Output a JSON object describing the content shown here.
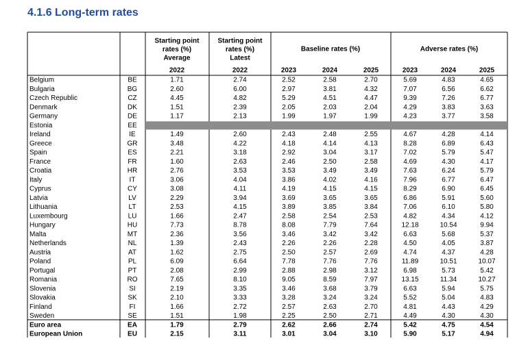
{
  "title": "4.1.6 Long-term rates",
  "table": {
    "headers": [
      [
        "Starting point",
        "rates (%)",
        "Average"
      ],
      [
        "Starting point",
        "rates (%)",
        "Latest"
      ],
      [
        "Baseline rates (%)"
      ],
      [
        "Adverse rates (%)"
      ]
    ],
    "years": [
      "2022",
      "2022",
      "2023",
      "2024",
      "2025",
      "2023",
      "2024",
      "2025"
    ],
    "rows": [
      {
        "name": "Belgium",
        "code": "BE",
        "values": [
          "1.71",
          "2.74",
          "2.52",
          "2.58",
          "2.70",
          "5.69",
          "4.83",
          "4.65"
        ]
      },
      {
        "name": "Bulgaria",
        "code": "BG",
        "values": [
          "2.60",
          "6.00",
          "2.97",
          "3.81",
          "4.32",
          "7.07",
          "6.56",
          "6.62"
        ]
      },
      {
        "name": "Czech Republic",
        "code": "CZ",
        "values": [
          "4.45",
          "4.82",
          "5.29",
          "4.51",
          "4.47",
          "9.39",
          "7.26",
          "6.77"
        ]
      },
      {
        "name": "Denmark",
        "code": "DK",
        "values": [
          "1.51",
          "2.39",
          "2.05",
          "2.03",
          "2.04",
          "4.29",
          "3.83",
          "3.63"
        ]
      },
      {
        "name": "Germany",
        "code": "DE",
        "values": [
          "1.17",
          "2.13",
          "1.99",
          "1.97",
          "1.99",
          "4.23",
          "3.77",
          "3.58"
        ]
      },
      {
        "name": "Estonia",
        "code": "EE",
        "values": []
      },
      {
        "name": "Ireland",
        "code": "IE",
        "values": [
          "1.49",
          "2.60",
          "2.43",
          "2.48",
          "2.55",
          "4.67",
          "4.28",
          "4.14"
        ]
      },
      {
        "name": "Greece",
        "code": "GR",
        "values": [
          "3.48",
          "4.22",
          "4.18",
          "4.14",
          "4.13",
          "8.28",
          "6.89",
          "6.43"
        ]
      },
      {
        "name": "Spain",
        "code": "ES",
        "values": [
          "2.21",
          "3.18",
          "2.92",
          "3.04",
          "3.17",
          "7.02",
          "5.79",
          "5.47"
        ]
      },
      {
        "name": "France",
        "code": "FR",
        "values": [
          "1.60",
          "2.63",
          "2.46",
          "2.50",
          "2.58",
          "4.69",
          "4.30",
          "4.17"
        ]
      },
      {
        "name": "Croatia",
        "code": "HR",
        "values": [
          "2.76",
          "3.53",
          "3.53",
          "3.49",
          "3.49",
          "7.63",
          "6.24",
          "5.79"
        ]
      },
      {
        "name": "Italy",
        "code": "IT",
        "values": [
          "3.06",
          "4.04",
          "3.86",
          "4.02",
          "4.16",
          "7.96",
          "6.77",
          "6.47"
        ]
      },
      {
        "name": "Cyprus",
        "code": "CY",
        "values": [
          "3.08",
          "4.11",
          "4.19",
          "4.15",
          "4.15",
          "8.29",
          "6.90",
          "6.45"
        ]
      },
      {
        "name": "Latvia",
        "code": "LV",
        "values": [
          "2.29",
          "3.94",
          "3.69",
          "3.65",
          "3.65",
          "6.86",
          "5.91",
          "5.60"
        ]
      },
      {
        "name": "Lithuania",
        "code": "LT",
        "values": [
          "2.53",
          "4.15",
          "3.89",
          "3.85",
          "3.84",
          "7.06",
          "6.10",
          "5.80"
        ]
      },
      {
        "name": "Luxembourg",
        "code": "LU",
        "values": [
          "1.66",
          "2.47",
          "2.58",
          "2.54",
          "2.53",
          "4.82",
          "4.34",
          "4.12"
        ]
      },
      {
        "name": "Hungary",
        "code": "HU",
        "values": [
          "7.73",
          "8.78",
          "8.08",
          "7.79",
          "7.64",
          "12.18",
          "10.54",
          "9.94"
        ]
      },
      {
        "name": "Malta",
        "code": "MT",
        "values": [
          "2.36",
          "3.56",
          "3.46",
          "3.42",
          "3.42",
          "6.63",
          "5.68",
          "5.37"
        ]
      },
      {
        "name": "Netherlands",
        "code": "NL",
        "values": [
          "1.39",
          "2.43",
          "2.26",
          "2.26",
          "2.28",
          "4.50",
          "4.05",
          "3.87"
        ]
      },
      {
        "name": "Austria",
        "code": "AT",
        "values": [
          "1.62",
          "2.75",
          "2.50",
          "2.57",
          "2.69",
          "4.74",
          "4.37",
          "4.28"
        ]
      },
      {
        "name": "Poland",
        "code": "PL",
        "values": [
          "6.09",
          "6.64",
          "7.78",
          "7.76",
          "7.76",
          "11.89",
          "10.51",
          "10.07"
        ]
      },
      {
        "name": "Portugal",
        "code": "PT",
        "values": [
          "2.08",
          "2.99",
          "2.88",
          "2.98",
          "3.12",
          "6.98",
          "5.73",
          "5.42"
        ]
      },
      {
        "name": "Romania",
        "code": "RO",
        "values": [
          "7.65",
          "8.10",
          "9.05",
          "8.59",
          "7.97",
          "13.15",
          "11.34",
          "10.27"
        ]
      },
      {
        "name": "Slovenia",
        "code": "SI",
        "values": [
          "2.19",
          "3.35",
          "3.46",
          "3.68",
          "3.79",
          "6.63",
          "5.94",
          "5.75"
        ]
      },
      {
        "name": "Slovakia",
        "code": "SK",
        "values": [
          "2.10",
          "3.33",
          "3.28",
          "3.24",
          "3.24",
          "5.52",
          "5.04",
          "4.83"
        ]
      },
      {
        "name": "Finland",
        "code": "FI",
        "values": [
          "1.66",
          "2.72",
          "2.57",
          "2.63",
          "2.70",
          "4.81",
          "4.43",
          "4.29"
        ]
      },
      {
        "name": "Sweden",
        "code": "SE",
        "values": [
          "1.51",
          "1.98",
          "2.25",
          "2.50",
          "2.71",
          "4.49",
          "4.30",
          "4.30"
        ]
      },
      {
        "name": "Euro area",
        "code": "EA",
        "values": [
          "1.79",
          "2.79",
          "2.62",
          "2.66",
          "2.74",
          "5.42",
          "4.75",
          "4.54"
        ]
      },
      {
        "name": "European Union",
        "code": "EU",
        "values": [
          "2.15",
          "3.11",
          "3.01",
          "3.04",
          "3.10",
          "5.90",
          "5.17",
          "4.94"
        ]
      }
    ]
  }
}
